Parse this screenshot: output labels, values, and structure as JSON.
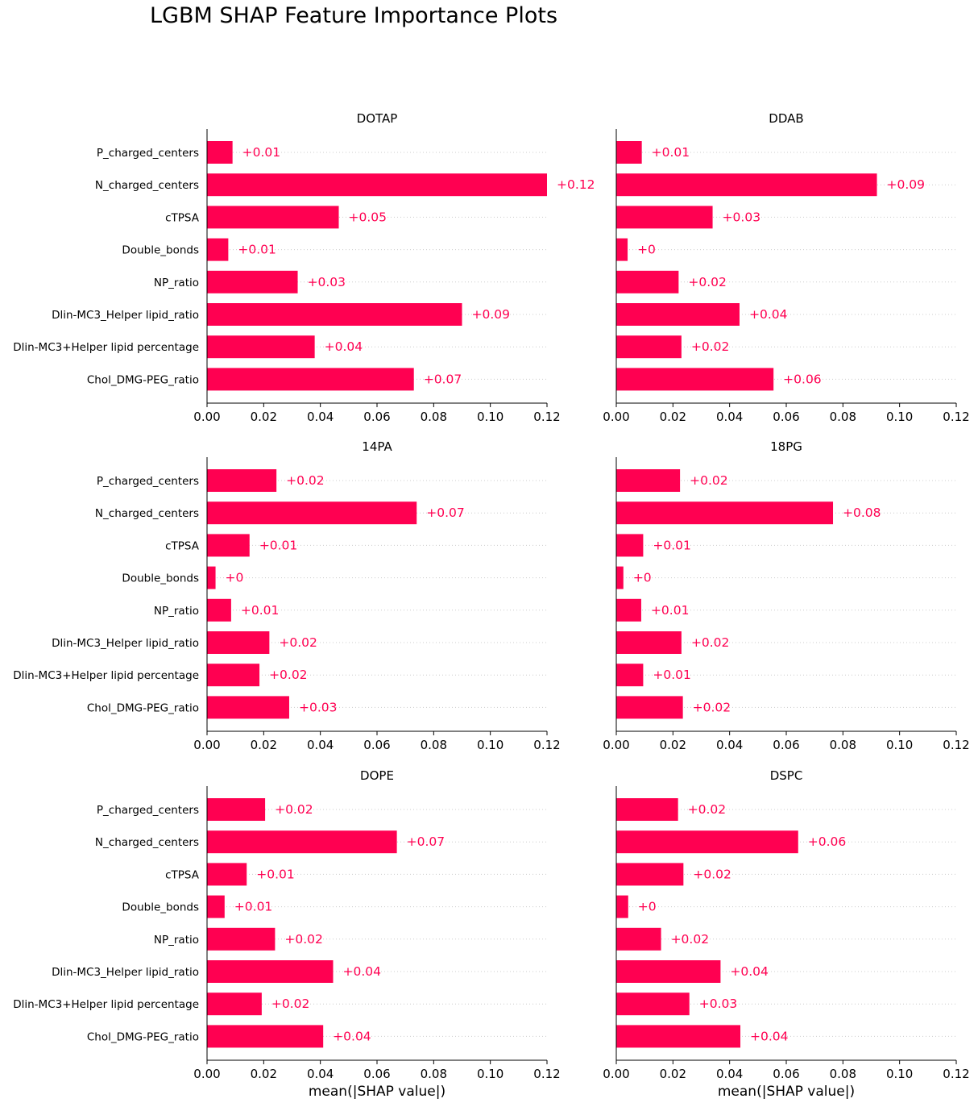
{
  "figure": {
    "suptitle": "LGBM SHAP Feature Importance Plots",
    "bar_color": "#ff0051",
    "label_color": "#ff0051",
    "xaxis_label": "mean(|SHAP value|)"
  },
  "chart_data": [
    {
      "type": "bar",
      "orientation": "horizontal",
      "title": "DOTAP",
      "categories": [
        "P_charged_centers",
        "N_charged_centers",
        "cTPSA",
        "Double_bonds",
        "NP_ratio",
        "Dlin-MC3_Helper lipid_ratio",
        "Dlin-MC3+Helper lipid percentage",
        "Chol_DMG-PEG_ratio"
      ],
      "values": [
        0.009,
        0.12,
        0.0465,
        0.0075,
        0.032,
        0.09,
        0.038,
        0.073
      ],
      "value_labels": [
        "+0.01",
        "+0.12",
        "+0.05",
        "+0.01",
        "+0.03",
        "+0.09",
        "+0.04",
        "+0.07"
      ],
      "xlim": [
        0,
        0.12
      ],
      "xticks": [
        "0.00",
        "0.02",
        "0.04",
        "0.06",
        "0.08",
        "0.10",
        "0.12"
      ],
      "xlabel": ""
    },
    {
      "type": "bar",
      "orientation": "horizontal",
      "title": "DDAB",
      "categories": [
        "P_charged_centers",
        "N_charged_centers",
        "cTPSA",
        "Double_bonds",
        "NP_ratio",
        "Dlin-MC3_Helper lipid_ratio",
        "Dlin-MC3+Helper lipid percentage",
        "Chol_DMG-PEG_ratio"
      ],
      "values": [
        0.009,
        0.092,
        0.034,
        0.004,
        0.022,
        0.0435,
        0.023,
        0.0555
      ],
      "value_labels": [
        "+0.01",
        "+0.09",
        "+0.03",
        "+0",
        "+0.02",
        "+0.04",
        "+0.02",
        "+0.06"
      ],
      "xlim": [
        0,
        0.12
      ],
      "xticks": [
        "0.00",
        "0.02",
        "0.04",
        "0.06",
        "0.08",
        "0.10",
        "0.12"
      ],
      "xlabel": ""
    },
    {
      "type": "bar",
      "orientation": "horizontal",
      "title": "14PA",
      "categories": [
        "P_charged_centers",
        "N_charged_centers",
        "cTPSA",
        "Double_bonds",
        "NP_ratio",
        "Dlin-MC3_Helper lipid_ratio",
        "Dlin-MC3+Helper lipid percentage",
        "Chol_DMG-PEG_ratio"
      ],
      "values": [
        0.0245,
        0.074,
        0.015,
        0.003,
        0.0085,
        0.022,
        0.0185,
        0.029
      ],
      "value_labels": [
        "+0.02",
        "+0.07",
        "+0.01",
        "+0",
        "+0.01",
        "+0.02",
        "+0.02",
        "+0.03"
      ],
      "xlim": [
        0,
        0.12
      ],
      "xticks": [
        "0.00",
        "0.02",
        "0.04",
        "0.06",
        "0.08",
        "0.10",
        "0.12"
      ],
      "xlabel": ""
    },
    {
      "type": "bar",
      "orientation": "horizontal",
      "title": "18PG",
      "categories": [
        "P_charged_centers",
        "N_charged_centers",
        "cTPSA",
        "Double_bonds",
        "NP_ratio",
        "Dlin-MC3_Helper lipid_ratio",
        "Dlin-MC3+Helper lipid percentage",
        "Chol_DMG-PEG_ratio"
      ],
      "values": [
        0.0225,
        0.0765,
        0.0095,
        0.0025,
        0.0088,
        0.023,
        0.0095,
        0.0235
      ],
      "value_labels": [
        "+0.02",
        "+0.08",
        "+0.01",
        "+0",
        "+0.01",
        "+0.02",
        "+0.01",
        "+0.02"
      ],
      "xlim": [
        0,
        0.12
      ],
      "xticks": [
        "0.00",
        "0.02",
        "0.04",
        "0.06",
        "0.08",
        "0.10",
        "0.12"
      ],
      "xlabel": ""
    },
    {
      "type": "bar",
      "orientation": "horizontal",
      "title": "DOPE",
      "categories": [
        "P_charged_centers",
        "N_charged_centers",
        "cTPSA",
        "Double_bonds",
        "NP_ratio",
        "Dlin-MC3_Helper lipid_ratio",
        "Dlin-MC3+Helper lipid percentage",
        "Chol_DMG-PEG_ratio"
      ],
      "values": [
        0.0205,
        0.067,
        0.014,
        0.0062,
        0.024,
        0.0445,
        0.0193,
        0.041
      ],
      "value_labels": [
        "+0.02",
        "+0.07",
        "+0.01",
        "+0.01",
        "+0.02",
        "+0.04",
        "+0.02",
        "+0.04"
      ],
      "xlim": [
        0,
        0.12
      ],
      "xticks": [
        "0.00",
        "0.02",
        "0.04",
        "0.06",
        "0.08",
        "0.10",
        "0.12"
      ],
      "xlabel": "mean(|SHAP value|)"
    },
    {
      "type": "bar",
      "orientation": "horizontal",
      "title": "DSPC",
      "categories": [
        "P_charged_centers",
        "N_charged_centers",
        "cTPSA",
        "Double_bonds",
        "NP_ratio",
        "Dlin-MC3_Helper lipid_ratio",
        "Dlin-MC3+Helper lipid percentage",
        "Chol_DMG-PEG_ratio"
      ],
      "values": [
        0.0218,
        0.0642,
        0.0237,
        0.0042,
        0.0158,
        0.0368,
        0.0258,
        0.0438
      ],
      "value_labels": [
        "+0.02",
        "+0.06",
        "+0.02",
        "+0",
        "+0.02",
        "+0.04",
        "+0.03",
        "+0.04"
      ],
      "xlim": [
        0,
        0.12
      ],
      "xticks": [
        "0.00",
        "0.02",
        "0.04",
        "0.06",
        "0.08",
        "0.10",
        "0.12"
      ],
      "xlabel": "mean(|SHAP value|)"
    }
  ]
}
